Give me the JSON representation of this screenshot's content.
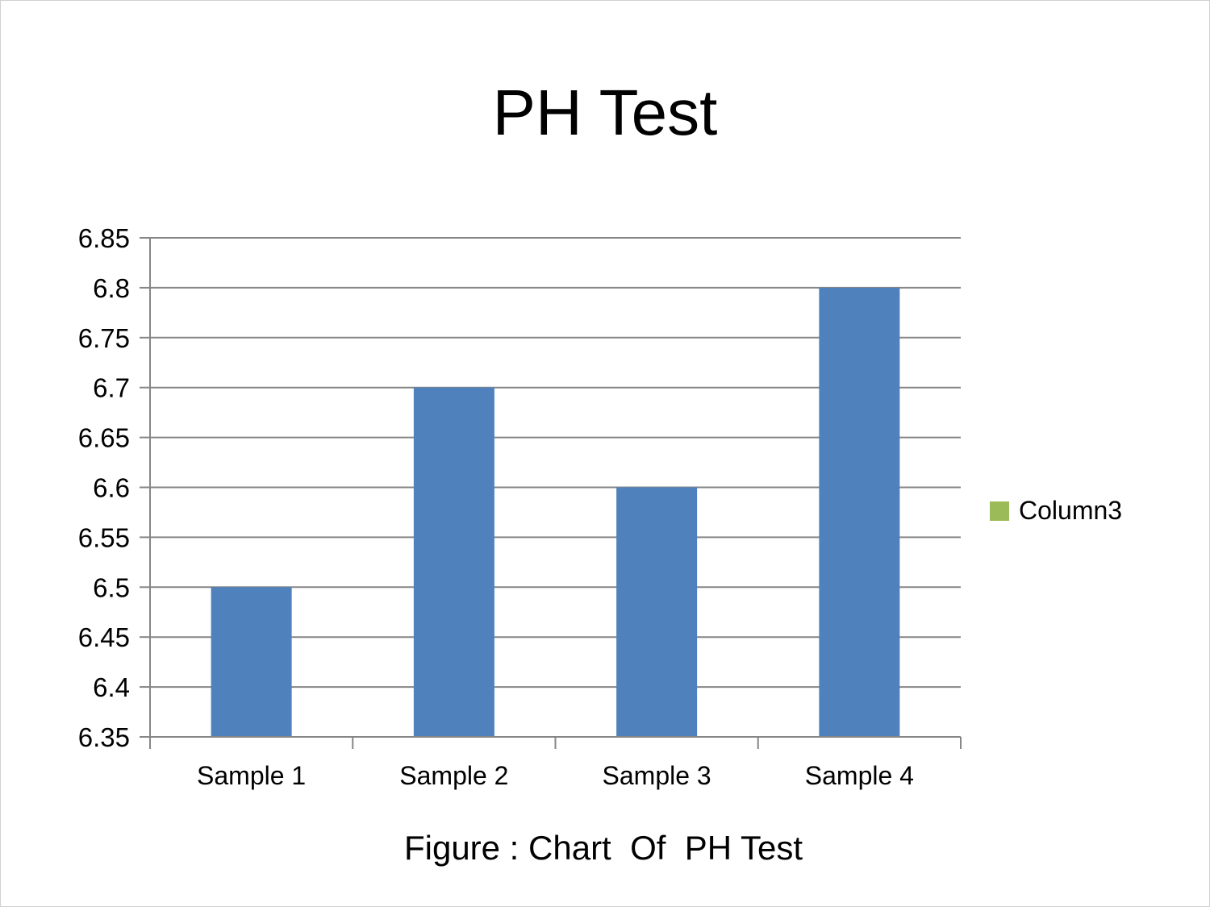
{
  "chart_data": {
    "type": "bar",
    "title": "PH Test",
    "caption": "Figure : Chart  Of  PH Test",
    "categories": [
      "Sample 1",
      "Sample 2",
      "Sample 3",
      "Sample 4"
    ],
    "series": [
      {
        "values": [
          6.5,
          6.7,
          6.6,
          6.8
        ],
        "color": "#4F81BD"
      }
    ],
    "xlabel": "",
    "ylabel": "",
    "ylim": [
      6.35,
      6.85
    ],
    "yticks": [
      6.35,
      6.4,
      6.45,
      6.5,
      6.55,
      6.6,
      6.65,
      6.7,
      6.75,
      6.8,
      6.85
    ],
    "ytick_labels": [
      "6.35",
      "6.4",
      "6.45",
      "6.5",
      "6.55",
      "6.6",
      "6.65",
      "6.7",
      "6.75",
      "6.8",
      "6.85"
    ],
    "grid": true,
    "legend": {
      "position": "right",
      "entries": [
        {
          "label": "Column3",
          "color": "#9BBB59"
        }
      ]
    },
    "gridline_color": "#868686",
    "axis_color": "#868686"
  }
}
